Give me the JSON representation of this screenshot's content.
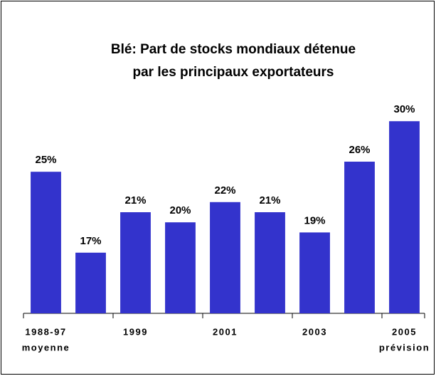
{
  "chart_data": {
    "type": "bar",
    "title": [
      "Blé: Part de stocks mondiaux détenue",
      "par les principaux exportateurs"
    ],
    "categories": [
      [
        "1988-97",
        "moyenne"
      ],
      null,
      [
        "1999"
      ],
      null,
      [
        "2001"
      ],
      null,
      [
        "2003"
      ],
      null,
      [
        "2005",
        "prévision"
      ]
    ],
    "values": [
      25,
      17,
      21,
      20,
      22,
      21,
      19,
      26,
      30
    ],
    "value_labels": [
      "25%",
      "17%",
      "21%",
      "20%",
      "22%",
      "21%",
      "19%",
      "26%",
      "30%"
    ],
    "color": "#3333cc",
    "ylim": [
      11,
      31
    ]
  }
}
